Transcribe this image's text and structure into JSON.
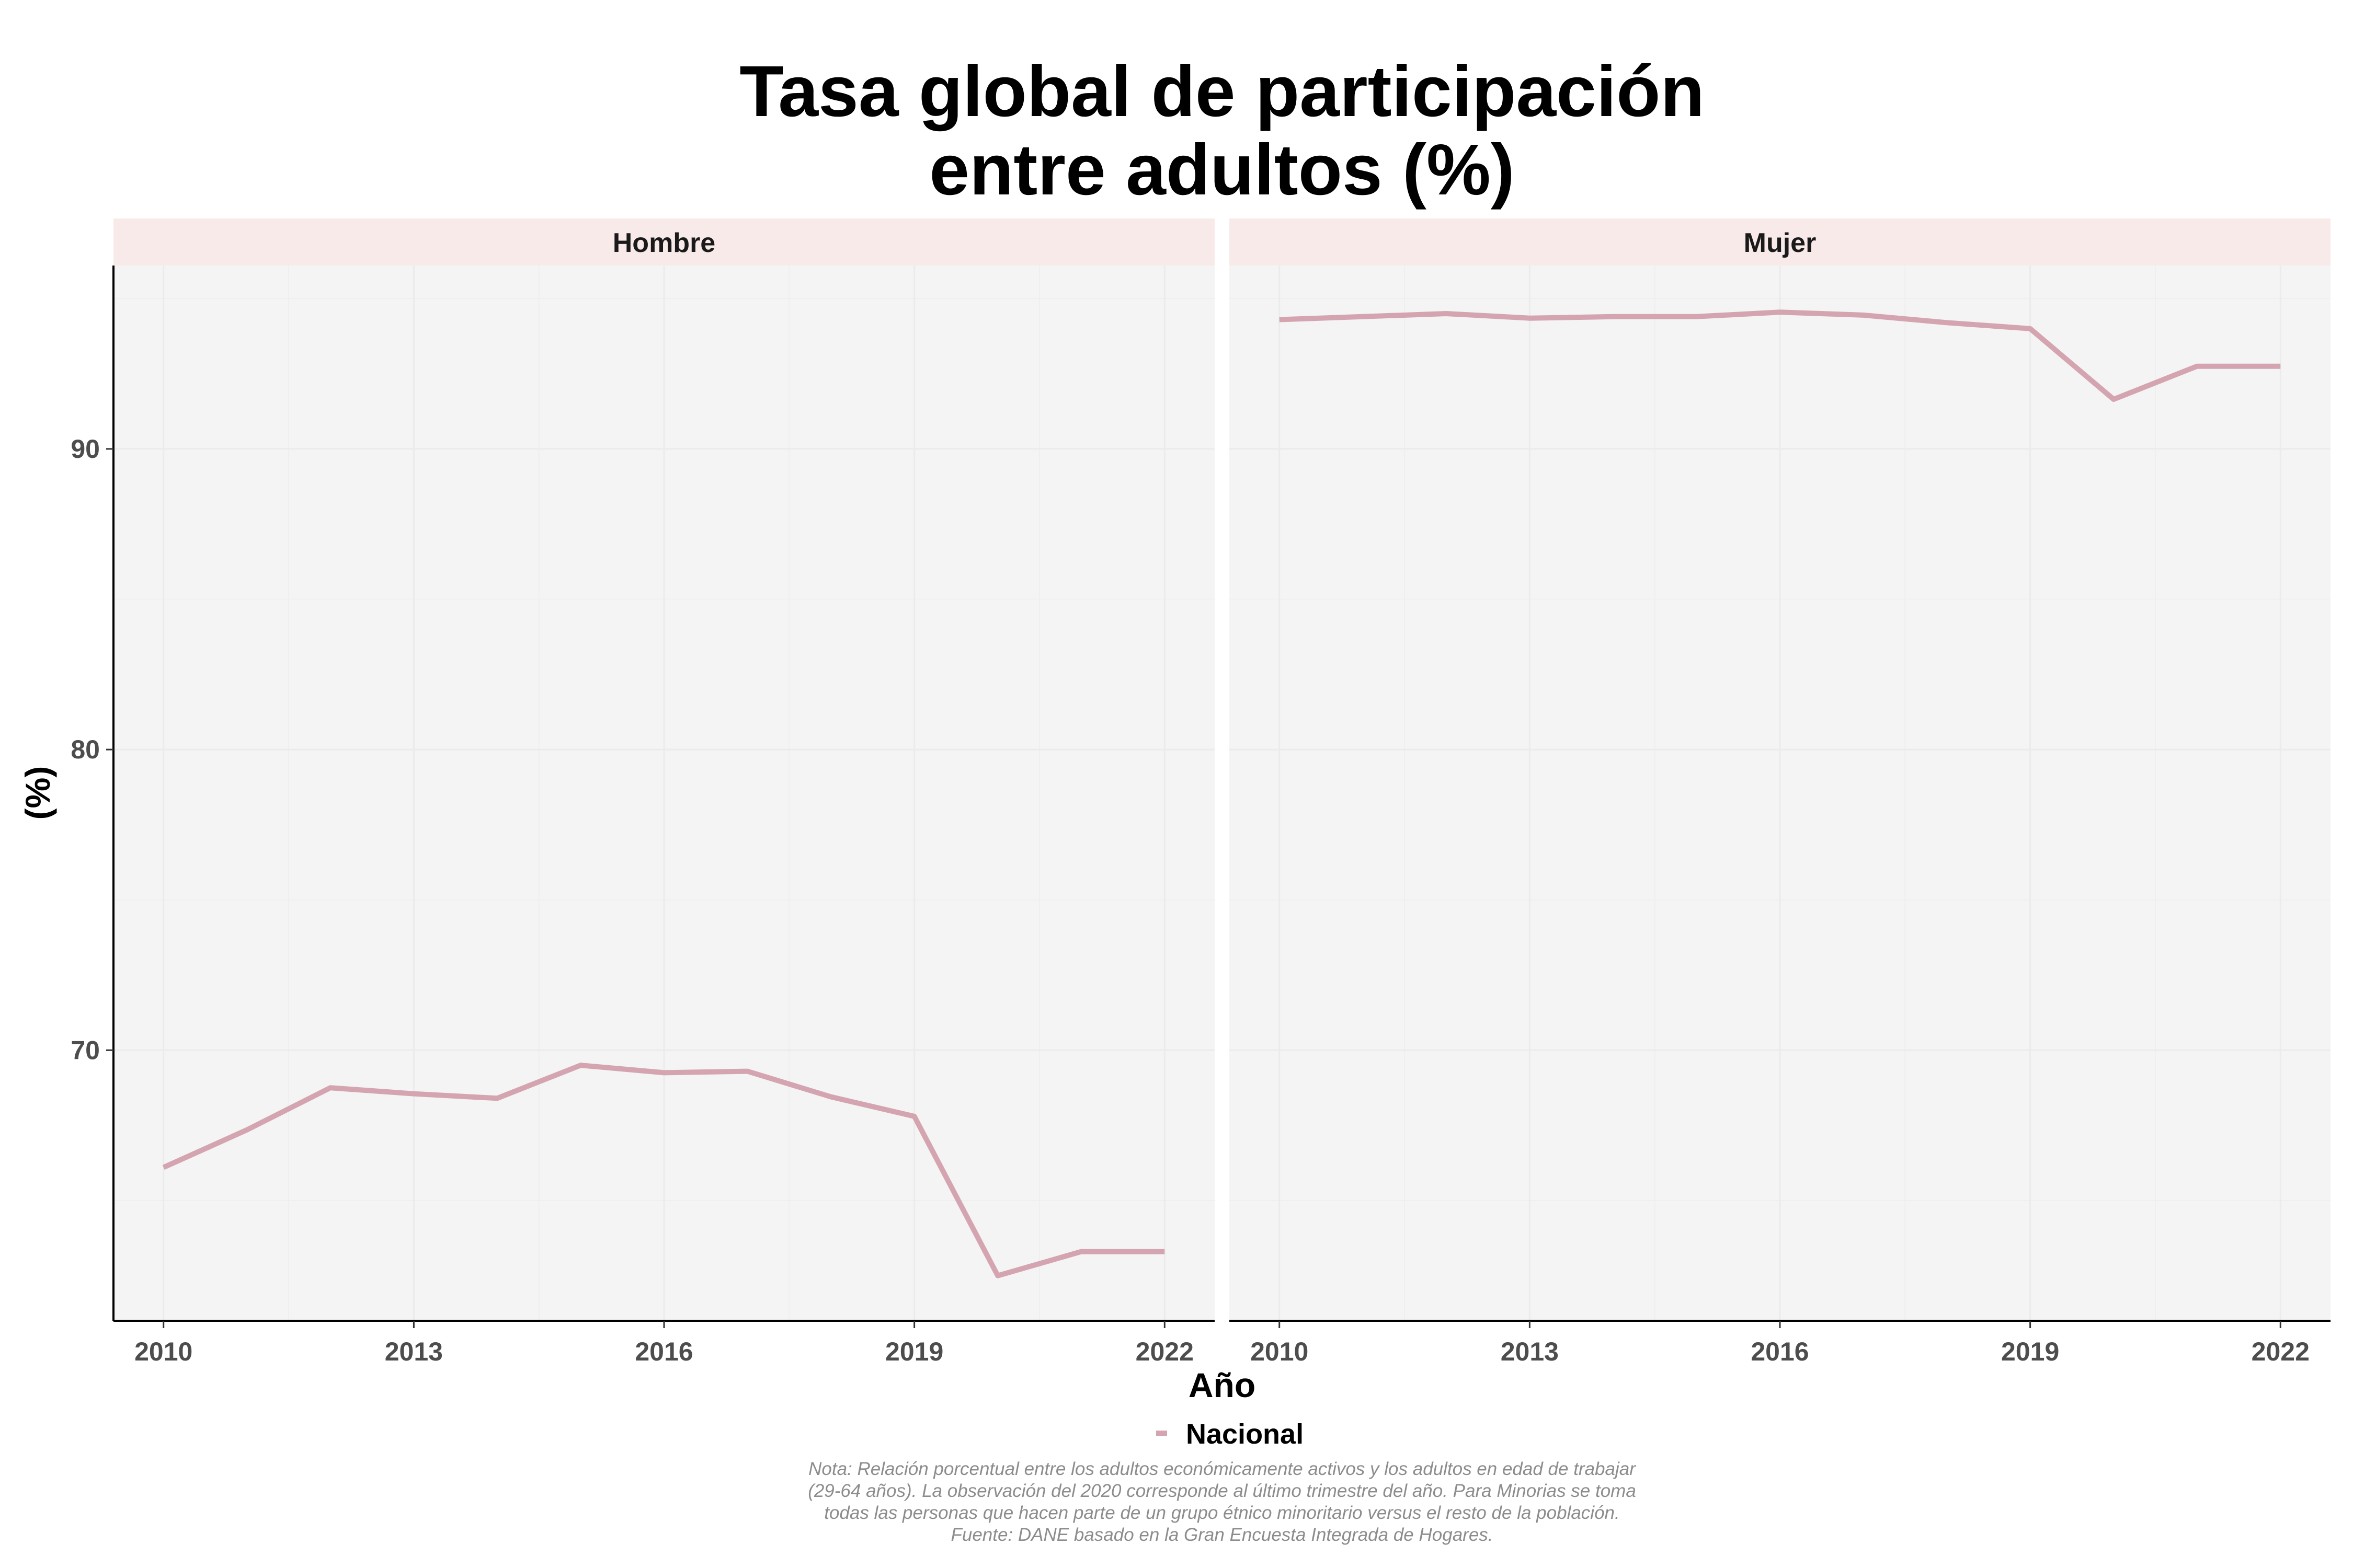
{
  "chart_data": {
    "type": "line",
    "title_lines": [
      "Tasa global de participación",
      "entre adultos (%)"
    ],
    "xlabel": "Año",
    "ylabel": "(%)",
    "x_ticks": [
      2010,
      2013,
      2016,
      2019,
      2022
    ],
    "y_ticks": [
      70,
      80,
      90
    ],
    "xlim": [
      2009.4,
      2022.6
    ],
    "ylim": [
      61,
      96.1
    ],
    "legend": {
      "entries": [
        {
          "name": "Nacional",
          "color": "#d4a5b1"
        }
      ],
      "placement": "bottom"
    },
    "colors": {
      "line": "#d4a5b1",
      "panel_bg": "#f4f4f4",
      "strip_bg": "#f9eaea",
      "grid": "#ebebeb"
    },
    "panels": [
      {
        "label": "Hombre",
        "series": [
          {
            "name": "Nacional",
            "x": [
              2010,
              2011,
              2012,
              2013,
              2014,
              2015,
              2016,
              2017,
              2018,
              2019,
              2020,
              2021,
              2022
            ],
            "y": [
              66.1,
              67.35,
              68.75,
              68.55,
              68.4,
              69.5,
              69.25,
              69.3,
              68.45,
              67.8,
              62.5,
              63.3,
              63.3
            ]
          }
        ]
      },
      {
        "label": "Mujer",
        "series": [
          {
            "name": "Nacional",
            "x": [
              2010,
              2011,
              2012,
              2013,
              2014,
              2015,
              2016,
              2017,
              2018,
              2019,
              2020,
              2021,
              2022
            ],
            "y": [
              94.3,
              94.4,
              94.5,
              94.35,
              94.4,
              94.4,
              94.55,
              94.45,
              94.2,
              94.0,
              91.65,
              92.75,
              92.75
            ]
          }
        ]
      }
    ],
    "note_lines": [
      "Nota: Relación porcentual entre los adultos económicamente activos y los adultos en edad de trabajar",
      "(29-64 años). La observación del 2020 corresponde al último trimestre del año. Para Minorias se toma",
      "todas las personas que hacen parte de un grupo étnico minoritario versus el resto de la población.",
      "Fuente: DANE basado en la Gran Encuesta Integrada de Hogares."
    ]
  }
}
